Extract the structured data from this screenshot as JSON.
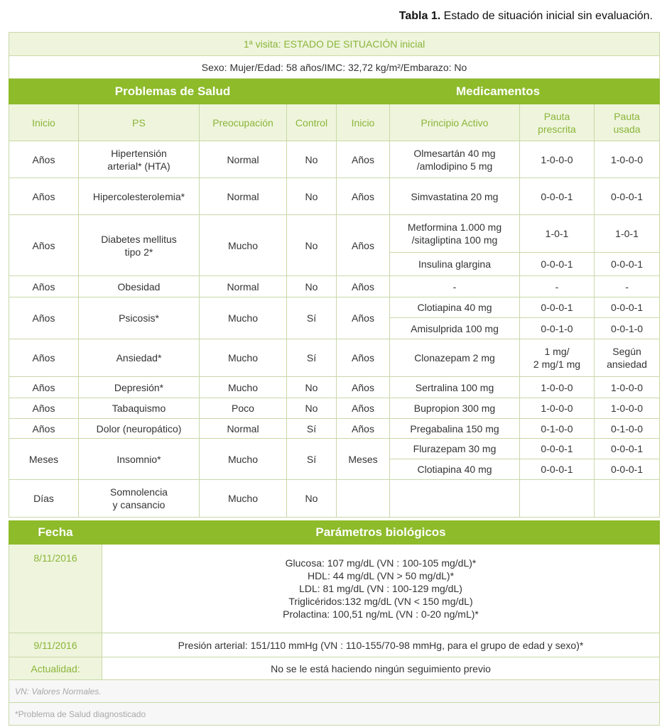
{
  "caption": {
    "bold": "Tabla 1.",
    "text": " Estado de situación inicial sin evaluación."
  },
  "table": {
    "title": "1ª visita: ESTADO DE SITUACIÓN inicial",
    "patient": "Sexo: Mujer/Edad: 58 años/IMC: 32,72 kg/m²/Embarazo: No",
    "group_headers": [
      "Problemas de Salud",
      "Medicamentos"
    ],
    "columns": [
      "Inicio",
      "PS",
      "Preocupación",
      "Control",
      "Inicio",
      "Principio Activo",
      "Pauta\nprescrita",
      "Pauta\nusada"
    ],
    "rows": [
      {
        "inicio": "Años",
        "ps": "Hipertensión\narterial* (HTA)",
        "preocupacion": "Normal",
        "control": "No",
        "med_inicio": "Años",
        "meds": [
          [
            "Olmesartán 40 mg\n/amlodipino 5 mg",
            "1-0-0-0",
            "1-0-0-0"
          ]
        ]
      },
      {
        "inicio": "Años",
        "ps": "Hipercolesterolemia*",
        "preocupacion": "Normal",
        "control": "No",
        "med_inicio": "Años",
        "meds": [
          [
            "Simvastatina 20 mg",
            "0-0-0-1",
            "0-0-0-1"
          ]
        ]
      },
      {
        "inicio": "Años",
        "ps": "Diabetes mellitus\ntipo 2*",
        "preocupacion": "Mucho",
        "control": "No",
        "med_inicio": "Años",
        "meds": [
          [
            "Metformina 1.000 mg\n/sitagliptina 100 mg",
            "1-0-1",
            "1-0-1"
          ],
          [
            "Insulina glargina",
            "0-0-0-1",
            "0-0-0-1"
          ]
        ]
      },
      {
        "inicio": "Años",
        "ps": "Obesidad",
        "preocupacion": "Normal",
        "control": "No",
        "med_inicio": "Años",
        "meds": [
          [
            "-",
            "-",
            "-"
          ]
        ]
      },
      {
        "inicio": "Años",
        "ps": "Psicosis*",
        "preocupacion": "Mucho",
        "control": "Sí",
        "med_inicio": "Años",
        "meds": [
          [
            "Clotiapina 40 mg",
            "0-0-0-1",
            "0-0-0-1"
          ],
          [
            "Amisulprida 100 mg",
            "0-0-1-0",
            "0-0-1-0"
          ]
        ]
      },
      {
        "inicio": "Años",
        "ps": "Ansiedad*",
        "preocupacion": "Mucho",
        "control": "Sí",
        "med_inicio": "Años",
        "meds": [
          [
            "Clonazepam  2 mg",
            "1 mg/\n2 mg/1 mg",
            "Según\nansiedad"
          ]
        ]
      },
      {
        "inicio": "Años",
        "ps": "Depresión*",
        "preocupacion": "Mucho",
        "control": "No",
        "med_inicio": "Años",
        "meds": [
          [
            "Sertralina 100 mg",
            "1-0-0-0",
            "1-0-0-0"
          ]
        ]
      },
      {
        "inicio": "Años",
        "ps": "Tabaquismo",
        "preocupacion": "Poco",
        "control": "No",
        "med_inicio": "Años",
        "meds": [
          [
            "Bupropion 300 mg",
            "1-0-0-0",
            "1-0-0-0"
          ]
        ]
      },
      {
        "inicio": "Años",
        "ps": "Dolor (neuropático)",
        "preocupacion": "Normal",
        "control": "Sí",
        "med_inicio": "Años",
        "meds": [
          [
            "Pregabalina 150 mg",
            "0-1-0-0",
            "0-1-0-0"
          ]
        ]
      },
      {
        "inicio": "Meses",
        "ps": "Insomnio*",
        "preocupacion": "Mucho",
        "control": "Sí",
        "med_inicio": "Meses",
        "meds": [
          [
            "Flurazepam 30 mg",
            "0-0-0-1",
            "0-0-0-1"
          ],
          [
            "Clotiapina 40 mg",
            "0-0-0-1",
            "0-0-0-1"
          ]
        ]
      },
      {
        "inicio": "Días",
        "ps": "Somnolencia\ny cansancio",
        "preocupacion": "Mucho",
        "control": "No",
        "med_inicio": "",
        "meds": [
          [
            "",
            "",
            ""
          ]
        ]
      }
    ]
  },
  "params": {
    "headers": [
      "Fecha",
      "Parámetros biológicos"
    ],
    "rows": [
      {
        "fecha": "8/11/2016",
        "value": "Glucosa: 107 mg/dL (VN : 100-105 mg/dL)*\nHDL: 44 mg/dL (VN > 50 mg/dL)*\nLDL: 81 mg/dL (VN : 100-129 mg/dL)\nTriglicéridos:132 mg/dL (VN < 150 mg/dL)\nProlactina: 100,51 ng/mL (VN : 0-20 ng/mL)*"
      },
      {
        "fecha": "9/11/2016",
        "value": "Presión arterial: 151/110 mmHg (VN : 110-155/70-98 mmHg, para el grupo de edad y sexo)*"
      },
      {
        "fecha": "Actualidad:",
        "value": "No se le está haciendo ningún seguimiento previo"
      }
    ],
    "notes": [
      "VN: Valores Normales.",
      "*Problema de Salud diagnosticado"
    ]
  },
  "colors": {
    "accent": "#8dbb2a",
    "light": "#eef5dc",
    "accent_text": "#8cb43a"
  }
}
